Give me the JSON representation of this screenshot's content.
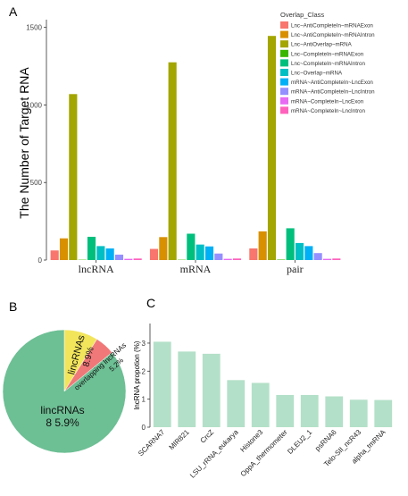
{
  "panel_labels": {
    "a": "A",
    "b": "B",
    "c": "C"
  },
  "chart_data": [
    {
      "type": "bar",
      "ylabel": "The Number of Target RNA",
      "ylim": [
        0,
        1550
      ],
      "yticks": [
        "0",
        "500",
        "1000",
        "1500"
      ],
      "grid": false,
      "categories": [
        "lncRNA",
        "mRNA",
        "pair"
      ],
      "legend_title": "Overlap_Class",
      "legend_position": "top-right",
      "series": [
        {
          "name": "Lnc~AntiCompleteIn~mRNAExon",
          "color": "#f8766d",
          "values": [
            62,
            72,
            75
          ]
        },
        {
          "name": "Lnc~AntiCompleteIn~mRNAIntron",
          "color": "#d89000",
          "values": [
            140,
            148,
            185
          ]
        },
        {
          "name": "Lnc~AntiOverlap~mRNA",
          "color": "#a3a500",
          "values": [
            1070,
            1275,
            1445
          ]
        },
        {
          "name": "Lnc~CompleteIn~mRNAExon",
          "color": "#39b600",
          "values": [
            2,
            2,
            3
          ]
        },
        {
          "name": "Lnc~CompleteIn~mRNAIntron",
          "color": "#00bf7d",
          "values": [
            150,
            170,
            205
          ]
        },
        {
          "name": "Lnc~Overlap~mRNA",
          "color": "#00bfc4",
          "values": [
            90,
            100,
            110
          ]
        },
        {
          "name": "mRNA~AntiCompleteIn~LncExon",
          "color": "#00b0f6",
          "values": [
            75,
            88,
            90
          ]
        },
        {
          "name": "mRNA~AntiCompleteIn~LncIntron",
          "color": "#9590ff",
          "values": [
            35,
            42,
            45
          ]
        },
        {
          "name": "mRNA~CompleteIn~LncExon",
          "color": "#e76bf3",
          "values": [
            8,
            8,
            8
          ]
        },
        {
          "name": "mRNA~CompleteIn~LncIntron",
          "color": "#ff62bc",
          "values": [
            10,
            10,
            10
          ]
        }
      ]
    },
    {
      "type": "pie",
      "slices": [
        {
          "label": "lincRNAs",
          "value_label": "8 5.9%",
          "value": 85.9,
          "color": "#6dbf94"
        },
        {
          "label": "lincRNAs",
          "value_label": "8.9%",
          "value": 8.9,
          "color": "#f2e55c"
        },
        {
          "label": "overlapping lncRNAs",
          "value_label": "5.2%",
          "value": 5.2,
          "color": "#f07878"
        }
      ]
    },
    {
      "type": "bar",
      "ylabel": "lncRNA propotion (%)",
      "ylim": [
        0,
        3.7
      ],
      "yticks": [
        "0",
        "1",
        "2",
        "3"
      ],
      "bar_color": "#b3e0c8",
      "categories": [
        "SCARNA7",
        "MIR821",
        "CrcZ",
        "LSU_rRNA_eukarya",
        "Histone3",
        "OppA_thermometer",
        "DLEU2_1",
        "psRNA6",
        "Telo-SII_ncR43",
        "alpha_tmRNA"
      ],
      "values": [
        3.05,
        2.7,
        2.62,
        1.68,
        1.58,
        1.15,
        1.15,
        1.1,
        0.98,
        0.97
      ]
    }
  ]
}
